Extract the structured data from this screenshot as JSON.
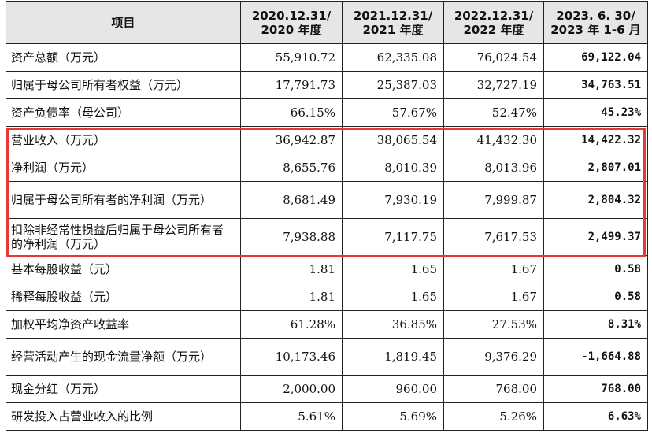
{
  "table": {
    "headers": [
      "项目",
      "2020.12.31/\n2020 年度",
      "2021.12.31/\n2021 年度",
      "2022.12.31/\n2022 年度",
      "2023. 6. 30/\n2023 年 1-6 月"
    ],
    "rows": [
      {
        "label": "资产总额（万元）",
        "values": [
          "55,910.72",
          "62,335.08",
          "76,024.54",
          "69,122.04"
        ]
      },
      {
        "label": "归属于母公司所有者权益（万元）",
        "values": [
          "17,791.73",
          "25,387.03",
          "32,727.19",
          "34,763.51"
        ]
      },
      {
        "label": "资产负债率（母公司）",
        "values": [
          "66.15%",
          "57.67%",
          "52.47%",
          "45.23%"
        ]
      },
      {
        "label": "营业收入（万元）",
        "values": [
          "36,942.87",
          "38,065.54",
          "41,432.30",
          "14,422.32"
        ]
      },
      {
        "label": "净利润（万元）",
        "values": [
          "8,655.76",
          "8,010.39",
          "8,013.96",
          "2,807.01"
        ]
      },
      {
        "label": "归属于母公司所有者的净利润（万元）",
        "values": [
          "8,681.49",
          "7,930.19",
          "7,999.87",
          "2,804.32"
        ]
      },
      {
        "label": "扣除非经常性损益后归属于母公司所有者的净利润（万元）",
        "values": [
          "7,938.88",
          "7,117.75",
          "7,617.53",
          "2,499.37"
        ]
      },
      {
        "label": "基本每股收益（元）",
        "values": [
          "1.81",
          "1.65",
          "1.67",
          "0.58"
        ]
      },
      {
        "label": "稀释每股收益（元）",
        "values": [
          "1.81",
          "1.65",
          "1.67",
          "0.58"
        ]
      },
      {
        "label": "加权平均净资产收益率",
        "values": [
          "61.28%",
          "36.85%",
          "27.53%",
          "8.31%"
        ]
      },
      {
        "label": "经营活动产生的现金流量净额（万元）",
        "values": [
          "10,173.46",
          "1,819.45",
          "9,376.29",
          "-1,664.88"
        ]
      },
      {
        "label": "现金分红（万元）",
        "values": [
          "2,000.00",
          "960.00",
          "768.00",
          "768.00"
        ]
      },
      {
        "label": "研发投入占营业收入的比例",
        "values": [
          "5.61%",
          "5.69%",
          "5.26%",
          "6.63%"
        ]
      }
    ]
  },
  "colors": {
    "highlight_border": "#e53935",
    "header_bg": "#e6e6e6"
  }
}
